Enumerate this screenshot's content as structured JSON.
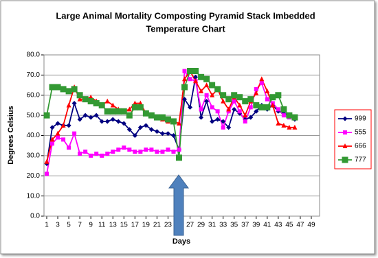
{
  "chart_data": {
    "type": "line",
    "title": [
      "Large Animal Mortality Composting Pyramid Stack Imbedded",
      "Temperature Chart"
    ],
    "x_label": "Days",
    "y_label": "Degrees Celsius",
    "x": [
      1,
      2,
      3,
      4,
      5,
      6,
      7,
      8,
      9,
      10,
      11,
      12,
      13,
      14,
      15,
      16,
      17,
      18,
      19,
      20,
      21,
      22,
      23,
      24,
      25,
      26,
      27,
      28,
      29,
      30,
      31,
      32,
      33,
      34,
      35,
      36,
      37,
      38,
      39,
      40,
      41,
      42,
      43,
      44,
      45,
      46
    ],
    "xlim": [
      0.5,
      50.5
    ],
    "xticks": [
      1,
      3,
      5,
      7,
      9,
      11,
      13,
      15,
      17,
      19,
      21,
      23,
      25,
      27,
      29,
      31,
      33,
      35,
      37,
      39,
      41,
      43,
      45,
      47,
      49
    ],
    "ylim": [
      0,
      80
    ],
    "yticks": [
      {
        "value": 0,
        "label": "0.0"
      },
      {
        "value": 10,
        "label": "10.0"
      },
      {
        "value": 20,
        "label": "20.0"
      },
      {
        "value": 30,
        "label": "30.0"
      },
      {
        "value": 40,
        "label": "40.0"
      },
      {
        "value": 50,
        "label": "50.0"
      },
      {
        "value": 60,
        "label": "60.0"
      },
      {
        "value": 70,
        "label": "70.0"
      },
      {
        "value": 80,
        "label": "80.0"
      }
    ],
    "grid": true,
    "legend": "right",
    "series": [
      {
        "name": "999",
        "color": "#000080",
        "marker": "diamond",
        "values": [
          26,
          44,
          46,
          45,
          45,
          56,
          48,
          50,
          49,
          50,
          47,
          47,
          48,
          47,
          46,
          43,
          40,
          44,
          45,
          43,
          42,
          41,
          41,
          40,
          33,
          58,
          54,
          69,
          49,
          57,
          47,
          48,
          47,
          44,
          53,
          51,
          48,
          49,
          52,
          55,
          53,
          55,
          52,
          51,
          50,
          48
        ]
      },
      {
        "name": "555",
        "color": "#ff00ff",
        "marker": "square",
        "values": [
          21,
          36,
          39,
          38,
          34,
          41,
          31,
          32,
          30,
          31,
          30,
          31,
          32,
          33,
          34,
          33,
          32,
          32,
          33,
          33,
          32,
          32,
          33,
          32,
          33,
          72,
          68,
          67,
          53,
          60,
          54,
          52,
          44,
          52,
          57,
          52,
          47,
          54,
          63,
          66,
          58,
          56,
          53,
          50,
          49,
          49
        ]
      },
      {
        "name": "666",
        "color": "#ff0000",
        "marker": "triangle",
        "values": [
          27,
          38,
          41,
          45,
          55,
          64,
          58,
          58,
          59,
          57,
          55,
          57,
          55,
          53,
          52,
          53,
          56,
          56,
          51,
          50,
          49,
          48,
          47,
          47,
          46,
          68,
          72,
          67,
          62,
          65,
          60,
          63,
          57,
          53,
          59,
          55,
          50,
          57,
          61,
          68,
          62,
          55,
          46,
          45,
          44,
          44
        ]
      },
      {
        "name": "777",
        "color": "#339933",
        "marker": "square-large",
        "values": [
          50,
          64,
          64,
          63,
          62,
          63,
          60,
          58,
          57,
          56,
          55,
          52,
          52,
          52,
          52,
          50,
          54,
          54,
          51,
          50,
          49,
          49,
          48,
          47,
          29,
          64,
          72,
          72,
          69,
          68,
          65,
          63,
          60,
          58,
          60,
          59,
          57,
          58,
          55,
          54,
          54,
          59,
          60,
          53,
          50,
          49
        ]
      }
    ]
  }
}
